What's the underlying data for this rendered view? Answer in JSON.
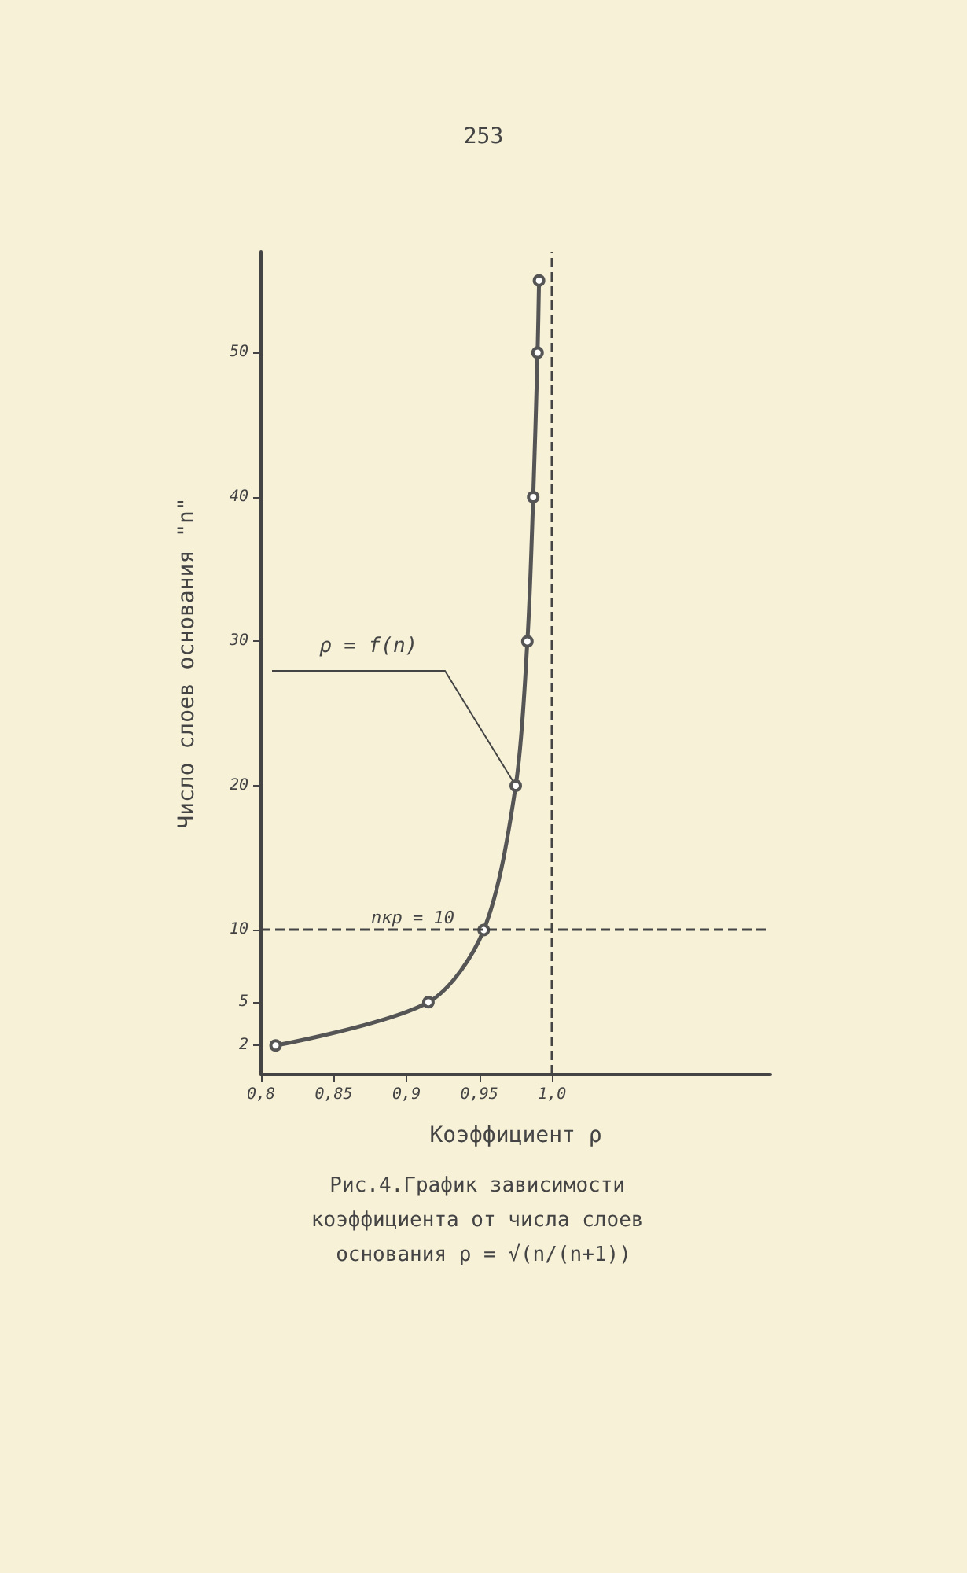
{
  "chart_data": {
    "type": "line",
    "title": "Рис.4.График зависимости коэффициента от числа слоев основания ρ = √(n/(n+1))",
    "xlabel": "Коэффициент ρ",
    "ylabel": "Число слоев основания \"n\"",
    "annotations": [
      "253",
      {
        "text": "ρ = f(n)",
        "x": 0.975,
        "y": 20
      }
    ],
    "x": [
      0.81,
      0.915,
      0.953,
      0.975,
      0.983,
      0.987,
      0.99,
      0.991
    ],
    "series": [
      {
        "color": "#555555",
        "values": [
          2,
          5,
          10,
          20,
          30,
          40,
          50,
          55
        ]
      }
    ],
    "xlim": [
      0.8,
      1.15
    ],
    "ylim": [
      0,
      57
    ],
    "xticks": [
      {
        "value": 0.8,
        "label": "0,8"
      },
      {
        "value": 0.85,
        "label": "0,85"
      },
      {
        "value": 0.9,
        "label": "0,9"
      },
      {
        "value": 0.95,
        "label": "0,95"
      },
      {
        "value": 1.0,
        "label": "1,0"
      }
    ],
    "yticks": [
      2,
      5,
      10,
      20,
      30,
      40,
      50
    ],
    "ref_lines": [
      {
        "axis": "x",
        "value": 1.0,
        "line_style": "dashed"
      },
      {
        "axis": "y",
        "value": 10,
        "label": "nкр = 10",
        "line_style": "dashed"
      }
    ],
    "marker": "circle",
    "line_style": "solid",
    "grid": false
  }
}
